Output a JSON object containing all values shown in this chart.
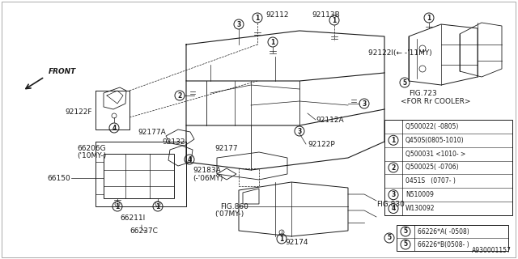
{
  "bg_color": "#ffffff",
  "line_color": "#1a1a1a",
  "fig_width": 6.4,
  "fig_height": 3.2,
  "dpi": 100,
  "diagram_code": "A930001157",
  "legend1_rows": [
    {
      "circle": "",
      "text": "Q500022( -0805)"
    },
    {
      "circle": "1",
      "text": "Q450S(0805-1010)"
    },
    {
      "circle": "",
      "text": "Q500031 <1010- >"
    },
    {
      "circle": "2",
      "text": "Q500025( -0706)"
    },
    {
      "circle": "",
      "text": "0451S   (0707- )"
    },
    {
      "circle": "3",
      "text": "N510009"
    },
    {
      "circle": "4",
      "text": "W130092"
    }
  ],
  "legend2_rows": [
    {
      "circle": "5",
      "text": "66226*A( -0508)"
    },
    {
      "circle": "5",
      "text": "66226*B(0508- )"
    }
  ]
}
